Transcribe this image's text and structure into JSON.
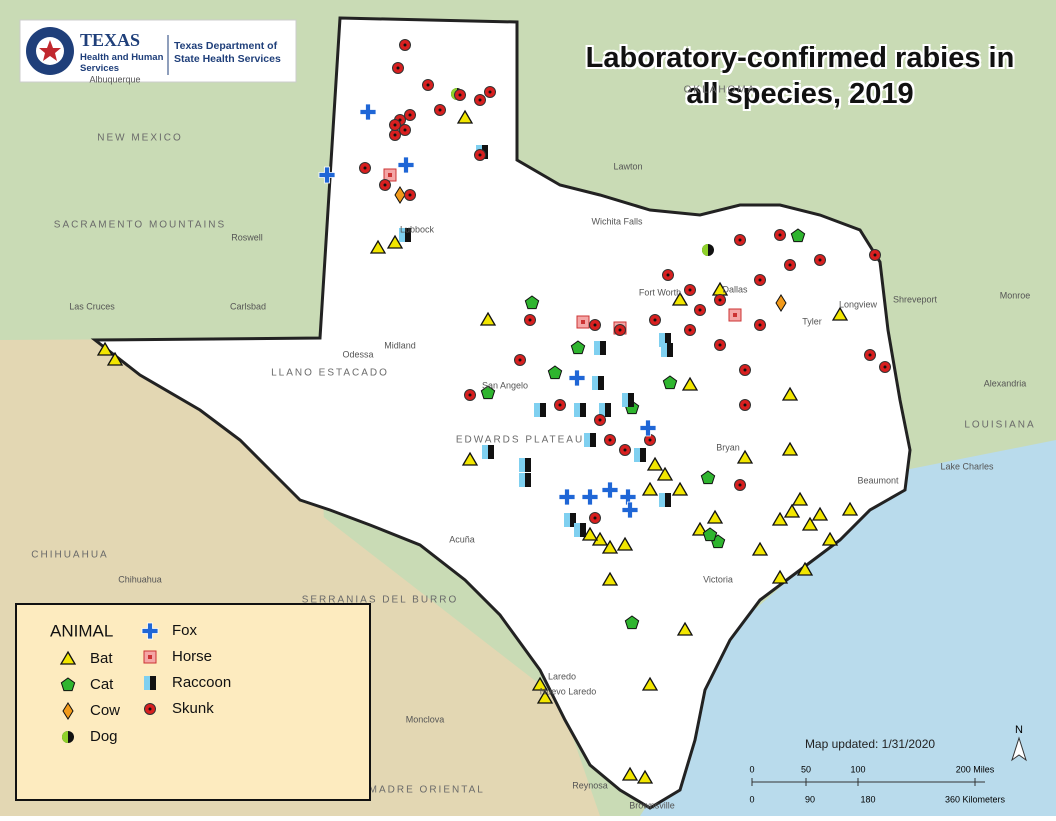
{
  "header": {
    "logo_title": "TEXAS",
    "logo_subtitle": "Health and Human Services",
    "agency": "Texas Department of State Health Services"
  },
  "title": "Laboratory-confirmed rabies in all species, 2019",
  "legend": {
    "title": "ANIMAL",
    "items": [
      "Bat",
      "Cat",
      "Cow",
      "Dog",
      "Fox",
      "Horse",
      "Raccoon",
      "Skunk"
    ]
  },
  "updated": "Map updated: 1/31/2020",
  "scale": {
    "miles": [
      "0",
      "50",
      "100",
      "200 Miles"
    ],
    "kilometers": [
      "0",
      "90",
      "180",
      "360 Kilometers"
    ]
  },
  "north": "N",
  "places": [
    "NEW MEXICO",
    "OKLAHOMA",
    "LOUISIANA",
    "CHIHUAHUA",
    "SACRAMENTO MOUNTAINS",
    "LLANO ESTACADO",
    "EDWARDS PLATEAU",
    "SERRANIAS DEL BURRO",
    "SIERRA MADRE ORIENTAL",
    "Albuquerque",
    "Roswell",
    "Las Cruces",
    "Carlsbad",
    "Lawton",
    "Wichita Falls",
    "Lubbock",
    "Midland",
    "Odessa",
    "San Angelo",
    "Fort Worth",
    "Dallas",
    "Tyler",
    "Longview",
    "Shreveport",
    "Monroe",
    "Alexandria",
    "Lake Charles",
    "Beaumont",
    "Bryan",
    "Victoria",
    "Laredo",
    "Nuevo Laredo",
    "Acuña",
    "Monclova",
    "Reynosa",
    "Brownsville",
    "Chihuahua"
  ]
}
